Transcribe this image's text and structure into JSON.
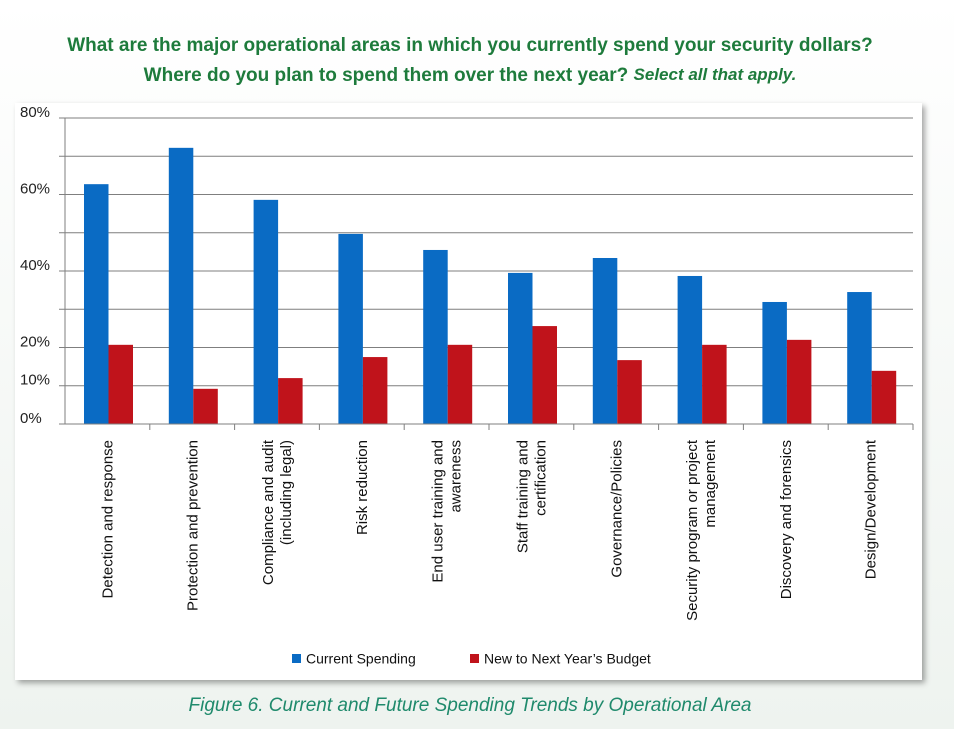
{
  "chart_data": {
    "type": "bar",
    "title": "What are the major operational areas in which you currently spend your security dollars?",
    "subtitle": "Where do you plan to spend them over the next year?",
    "title_note": "Select all that apply.",
    "caption": "Figure 6. Current and Future Spending Trends by Operational Area",
    "categories": [
      "Detection and response",
      "Protection and prevention",
      "Compliance and audit\n(including legal)",
      "Risk reduction",
      "End user training and\nawareness",
      "Staff training and\ncertification",
      "Governance/Policies",
      "Security program or project\nmanagement",
      "Discovery and forensics",
      "Design/Development"
    ],
    "series": [
      {
        "name": "Current Spending",
        "color": "#0a6bc4",
        "values": [
          62.7,
          72.2,
          58.6,
          49.7,
          45.5,
          39.5,
          43.4,
          38.7,
          31.9,
          34.5
        ]
      },
      {
        "name": "New to Next Year’s Budget",
        "color": "#c0131b",
        "values": [
          20.7,
          9.2,
          12.0,
          17.5,
          20.7,
          25.6,
          16.7,
          20.7,
          22.0,
          13.9
        ]
      }
    ],
    "ylim": [
      0,
      80
    ],
    "yticks": [
      {
        "value": 0,
        "label": "0%"
      },
      {
        "value": 10,
        "label": "10%"
      },
      {
        "value": 20,
        "label": "20%"
      },
      {
        "value": 30,
        "label": null
      },
      {
        "value": 40,
        "label": "40%"
      },
      {
        "value": 50,
        "label": null
      },
      {
        "value": 60,
        "label": "60%"
      },
      {
        "value": 70,
        "label": null
      },
      {
        "value": 80,
        "label": "80%"
      }
    ],
    "grid": true,
    "legend": "bottom"
  }
}
